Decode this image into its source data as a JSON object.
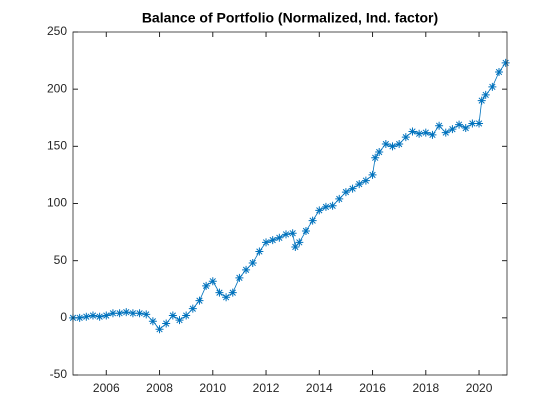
{
  "chart_data": {
    "type": "line",
    "title": "Balance of Portfolio (Normalized, Ind. factor)",
    "x": [
      2004.75,
      2005,
      2005.25,
      2005.5,
      2005.75,
      2006,
      2006.25,
      2006.5,
      2006.75,
      2007,
      2007.25,
      2007.5,
      2007.75,
      2008,
      2008.25,
      2008.5,
      2008.75,
      2009,
      2009.25,
      2009.5,
      2009.75,
      2010,
      2010.25,
      2010.5,
      2010.75,
      2011,
      2011.25,
      2011.5,
      2011.75,
      2012,
      2012.25,
      2012.5,
      2012.75,
      2013,
      2013.1,
      2013.25,
      2013.5,
      2013.75,
      2014,
      2014.25,
      2014.5,
      2014.75,
      2015,
      2015.25,
      2015.5,
      2015.75,
      2016,
      2016.1,
      2016.25,
      2016.5,
      2016.75,
      2017,
      2017.25,
      2017.5,
      2017.75,
      2018,
      2018.25,
      2018.5,
      2018.75,
      2019,
      2019.25,
      2019.5,
      2019.75,
      2020,
      2020.1,
      2020.25,
      2020.5,
      2020.75,
      2021
    ],
    "series": [
      {
        "color": "#0072bd",
        "values": [
          0,
          0,
          1,
          2,
          1,
          2,
          4,
          4,
          5,
          4,
          4,
          3,
          -3,
          -10,
          -5,
          2,
          -2,
          2,
          8,
          15,
          28,
          32,
          22,
          18,
          22,
          35,
          42,
          48,
          58,
          66,
          68,
          70,
          73,
          74,
          62,
          66,
          76,
          85,
          94,
          97,
          98,
          104,
          110,
          113,
          117,
          120,
          125,
          140,
          145,
          152,
          150,
          152,
          158,
          163,
          161,
          162,
          160,
          168,
          162,
          165,
          169,
          166,
          170,
          170,
          190,
          195,
          202,
          215,
          223
        ]
      }
    ],
    "xlim": [
      2004.75,
      2021.05
    ],
    "ylim": [
      -50,
      250
    ],
    "xticks": [
      2006,
      2008,
      2010,
      2012,
      2014,
      2016,
      2018,
      2020
    ],
    "yticks": [
      -50,
      0,
      50,
      100,
      150,
      200,
      250
    ]
  }
}
